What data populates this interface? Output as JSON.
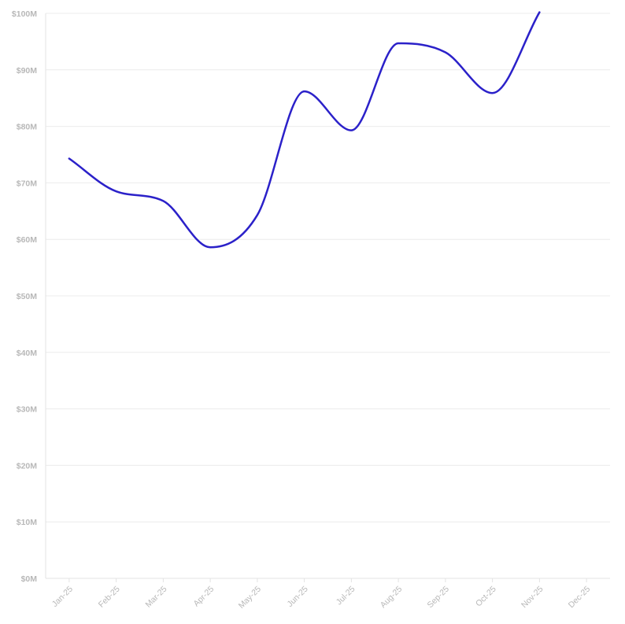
{
  "chart_data": {
    "type": "line",
    "categories": [
      "Jan-25",
      "Feb-25",
      "Mar-25",
      "Apr-25",
      "May-25",
      "Jun-25",
      "Jul-25",
      "Aug-25",
      "Sep-25",
      "Oct-25",
      "Nov-25",
      "Dec-25"
    ],
    "series": [
      {
        "values": [
          74.3,
          68.5,
          66.8,
          58.6,
          64.3,
          86.2,
          79.3,
          94.7,
          93.1,
          85.9,
          100.2,
          null
        ]
      }
    ],
    "ylim": [
      0,
      100
    ],
    "yticks": [
      0,
      10,
      20,
      30,
      40,
      50,
      60,
      70,
      80,
      90,
      100
    ],
    "ytick_labels": [
      "$0M",
      "$10M",
      "$20M",
      "$30M",
      "$40M",
      "$50M",
      "$60M",
      "$70M",
      "$80M",
      "$90M",
      "$100M"
    ],
    "title": "",
    "xlabel": "",
    "ylabel": "",
    "grid": true,
    "line_color": "#2b21c9"
  }
}
